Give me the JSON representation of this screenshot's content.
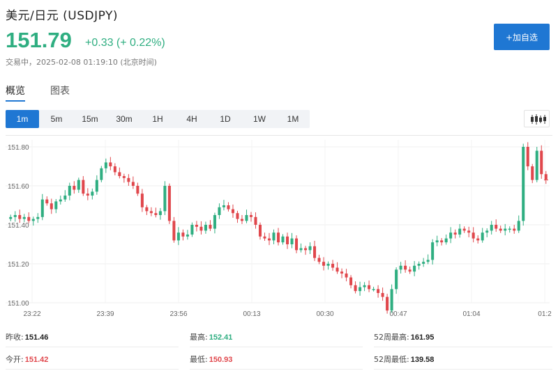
{
  "header": {
    "title": "美元/日元 (USDJPY)",
    "price": "151.79",
    "change": "+0.33 (+ 0.22%)",
    "status": "交易中，2025-02-08 01:19:10 (北京时间)",
    "add_button": "+加自选"
  },
  "tabs": [
    "概览",
    "图表"
  ],
  "periods": [
    "1m",
    "5m",
    "15m",
    "30m",
    "1H",
    "4H",
    "1D",
    "1W",
    "1M"
  ],
  "active_period": "1m",
  "stats": [
    {
      "label": "昨收:",
      "value": "151.46",
      "color": "#222222"
    },
    {
      "label": "最高:",
      "value": "152.41",
      "color": "#2fae81"
    },
    {
      "label": "52周最高:",
      "value": "161.95",
      "color": "#222222"
    },
    {
      "label": "今开:",
      "value": "151.42",
      "color": "#e0474c"
    },
    {
      "label": "最低:",
      "value": "150.93",
      "color": "#e0474c"
    },
    {
      "label": "52周最低:",
      "value": "139.58",
      "color": "#222222"
    }
  ],
  "colors": {
    "up": "#2fae81",
    "down": "#e0474c",
    "accent": "#1f77d3"
  },
  "chart_data": {
    "type": "candlestick",
    "y_ticks": [
      "151.80",
      "151.60",
      "151.40",
      "151.20",
      "151.00"
    ],
    "ylim": [
      151.0,
      151.8
    ],
    "x_tick_labels": [
      "23:22",
      "23:39",
      "23:56",
      "00:13",
      "00:30",
      "00:47",
      "01:04",
      "01:2"
    ],
    "grid": true,
    "close": [
      151.44,
      151.45,
      151.43,
      151.44,
      151.42,
      151.43,
      151.44,
      151.53,
      151.51,
      151.48,
      151.52,
      151.53,
      151.55,
      151.6,
      151.58,
      151.63,
      151.56,
      151.55,
      151.57,
      151.63,
      151.69,
      151.72,
      151.7,
      151.67,
      151.65,
      151.64,
      151.62,
      151.6,
      151.56,
      151.49,
      151.47,
      151.46,
      151.45,
      151.47,
      151.6,
      151.42,
      151.32,
      151.36,
      151.34,
      151.35,
      151.4,
      151.39,
      151.37,
      151.4,
      151.38,
      151.45,
      151.49,
      151.5,
      151.48,
      151.46,
      151.43,
      151.42,
      151.45,
      151.44,
      151.4,
      151.34,
      151.33,
      151.32,
      151.36,
      151.31,
      151.34,
      151.3,
      151.33,
      151.27,
      151.28,
      151.27,
      151.29,
      151.23,
      151.21,
      151.19,
      151.2,
      151.18,
      151.16,
      151.15,
      151.13,
      151.09,
      151.06,
      151.08,
      151.09,
      151.07,
      151.07,
      151.05,
      151.03,
      150.96,
      151.07,
      151.17,
      151.19,
      151.17,
      151.16,
      151.19,
      151.2,
      151.21,
      151.22,
      151.31,
      151.32,
      151.31,
      151.33,
      151.36,
      151.35,
      151.38,
      151.37,
      151.36,
      151.33,
      151.32,
      151.36,
      151.37,
      151.4,
      151.38,
      151.37,
      151.38,
      151.38,
      151.37,
      151.42,
      151.8,
      151.7,
      151.63,
      151.78,
      151.66,
      151.63
    ],
    "up_body_pct": 72
  }
}
